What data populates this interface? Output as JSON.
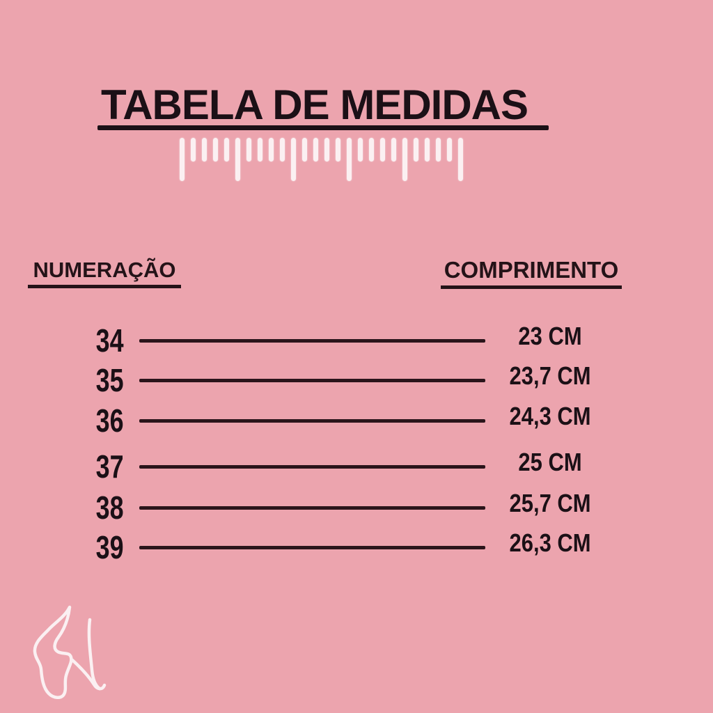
{
  "title": {
    "text": "TABELA DE MEDIDAS"
  },
  "ruler": {
    "tick_count": 26,
    "long_every": 5
  },
  "table": {
    "col1_header": "NUMERAÇÃO",
    "col2_header": "COMPRIMENTO",
    "rows": [
      {
        "size": "34",
        "length": "23 CM"
      },
      {
        "size": "35",
        "length": "23,7 CM"
      },
      {
        "size": "36",
        "length": "24,3 CM"
      },
      {
        "size": "37",
        "length": "25 CM"
      },
      {
        "size": "38",
        "length": "25,7 CM"
      },
      {
        "size": "39",
        "length": "26,3 CM"
      }
    ]
  },
  "chart_data": {
    "type": "table",
    "title": "TABELA DE MEDIDAS",
    "columns": [
      "NUMERAÇÃO",
      "COMPRIMENTO"
    ],
    "rows": [
      [
        "34",
        "23 CM"
      ],
      [
        "35",
        "23,7 CM"
      ],
      [
        "36",
        "24,3 CM"
      ],
      [
        "37",
        "25 CM"
      ],
      [
        "38",
        "25,7 CM"
      ],
      [
        "39",
        "26,3 CM"
      ]
    ],
    "sizes_numeric": [
      34,
      35,
      36,
      37,
      38,
      39
    ],
    "lengths_cm_numeric": [
      23,
      23.7,
      24.3,
      25,
      25.7,
      26.3
    ]
  },
  "icons": {
    "ruler": "ruler-ticks-icon",
    "feet": "feet-line-art-icon"
  },
  "colors": {
    "background": "#eca4ae",
    "ink": "#1b1016",
    "line": "#2a141a",
    "white_accent": "#fbf0f2"
  }
}
